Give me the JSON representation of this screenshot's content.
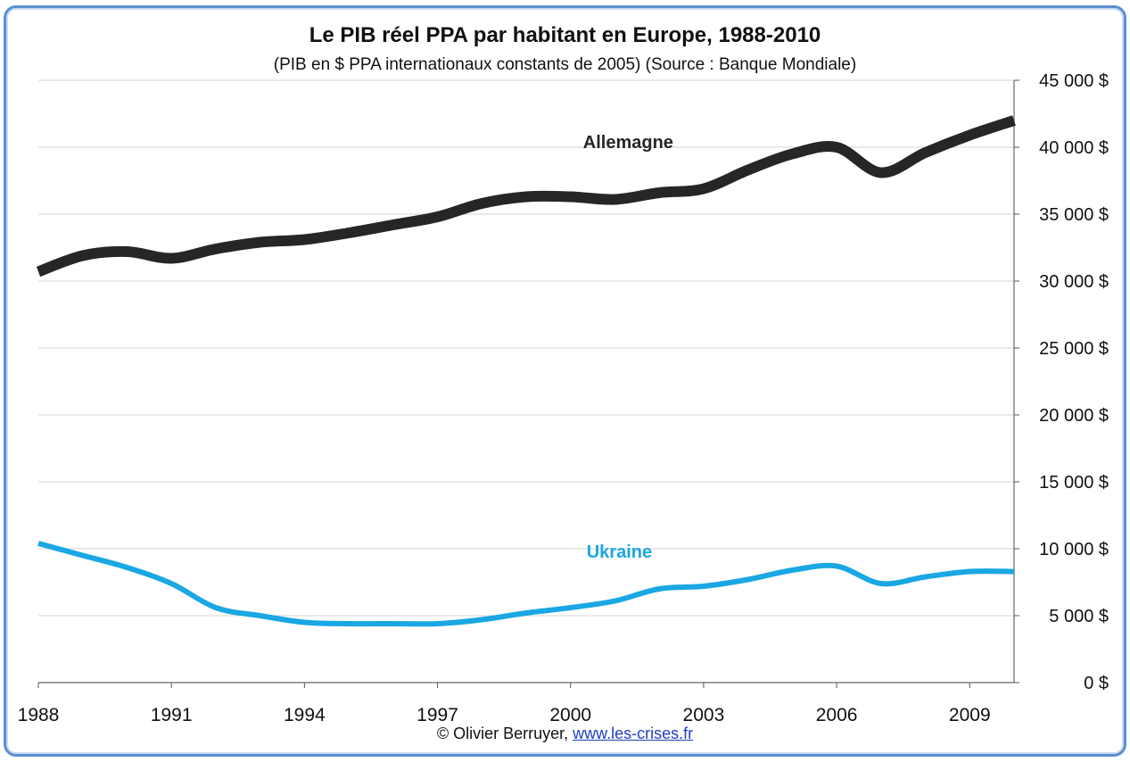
{
  "chart_data": {
    "type": "line",
    "title": "Le PIB réel PPA par habitant en Europe, 1988-2010",
    "subtitle": "(PIB en $ PPA internationaux constants de 2005) (Source : Banque Mondiale)",
    "x_ticks": [
      "1988",
      "1991",
      "1994",
      "1997",
      "2000",
      "2003",
      "2006",
      "2009"
    ],
    "y_ticks": [
      "0 $",
      "5 000 $",
      "10 000 $",
      "15 000 $",
      "20 000 $",
      "25 000 $",
      "30 000 $",
      "35 000 $",
      "40 000 $",
      "45 000 $"
    ],
    "xlim": [
      1988,
      2010
    ],
    "ylim": [
      0,
      45000
    ],
    "grid": true,
    "y_axis_side": "right",
    "series": [
      {
        "name": "Allemagne",
        "color": "#262626",
        "x": [
          1988,
          1989,
          1990,
          1991,
          1992,
          1993,
          1994,
          1995,
          1996,
          1997,
          1998,
          1999,
          2000,
          2001,
          2002,
          2003,
          2004,
          2005,
          2006,
          2007,
          2008,
          2009,
          2010
        ],
        "values": [
          30700,
          31900,
          32200,
          31700,
          32400,
          32900,
          33100,
          33600,
          34200,
          34800,
          35800,
          36300,
          36300,
          36100,
          36600,
          36900,
          38300,
          39500,
          40000,
          38100,
          39600,
          40900,
          42000
        ]
      },
      {
        "name": "Ukraine",
        "color": "#1aa7e3",
        "x": [
          1988,
          1989,
          1990,
          1991,
          1992,
          1993,
          1994,
          1995,
          1996,
          1997,
          1998,
          1999,
          2000,
          2001,
          2002,
          2003,
          2004,
          2005,
          2006,
          2007,
          2008,
          2009,
          2010
        ],
        "values": [
          10400,
          9500,
          8600,
          7400,
          5600,
          5000,
          4500,
          4400,
          4400,
          4400,
          4700,
          5200,
          5600,
          6100,
          7000,
          7200,
          7700,
          8400,
          8700,
          7400,
          7900,
          8300,
          8300
        ]
      }
    ]
  },
  "footer": {
    "credit": "© Olivier Berruyer,",
    "link": "www.les-crises.fr"
  }
}
